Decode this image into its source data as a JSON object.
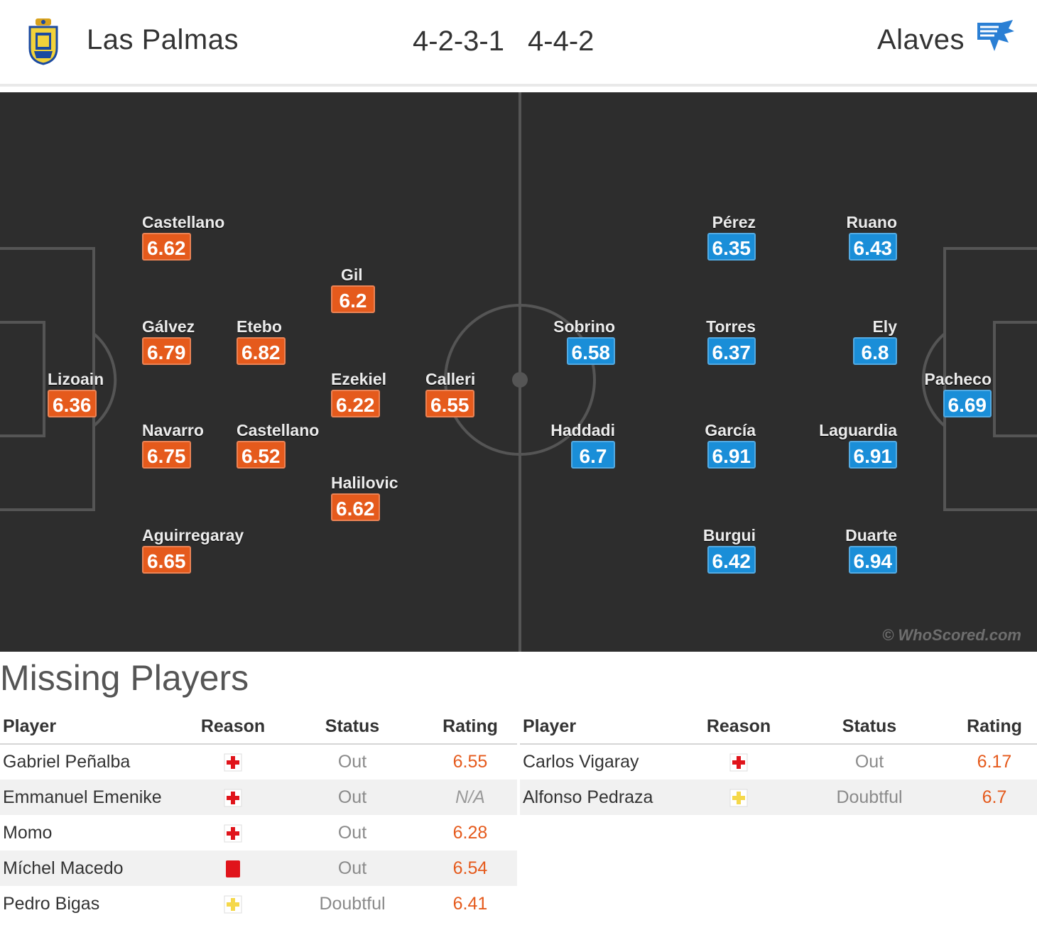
{
  "header": {
    "home_team": "Las Palmas",
    "away_team": "Alaves",
    "home_formation": "4-2-3-1",
    "away_formation": "4-4-2"
  },
  "colors": {
    "home_rating": "#e55a1c",
    "away_rating": "#1a8ed8",
    "pitch": "#2d2d2d",
    "pitch_lines": "#555555"
  },
  "pitch": {
    "watermark": "© WhoScored.com",
    "home_players": [
      {
        "name": "Castellano",
        "rating": "6.62"
      },
      {
        "name": "Gil",
        "rating": "6.2"
      },
      {
        "name": "Gálvez",
        "rating": "6.79"
      },
      {
        "name": "Etebo",
        "rating": "6.82"
      },
      {
        "name": "Lizoain",
        "rating": "6.36"
      },
      {
        "name": "Ezekiel",
        "rating": "6.22"
      },
      {
        "name": "Calleri",
        "rating": "6.55"
      },
      {
        "name": "Navarro",
        "rating": "6.75"
      },
      {
        "name": "Castellano",
        "rating": "6.52"
      },
      {
        "name": "Halilovic",
        "rating": "6.62"
      },
      {
        "name": "Aguirregaray",
        "rating": "6.65"
      }
    ],
    "away_players": [
      {
        "name": "Pérez",
        "rating": "6.35"
      },
      {
        "name": "Ruano",
        "rating": "6.43"
      },
      {
        "name": "Sobrino",
        "rating": "6.58"
      },
      {
        "name": "Torres",
        "rating": "6.37"
      },
      {
        "name": "Ely",
        "rating": "6.8"
      },
      {
        "name": "Pacheco",
        "rating": "6.69"
      },
      {
        "name": "Haddadi",
        "rating": "6.7"
      },
      {
        "name": "García",
        "rating": "6.91"
      },
      {
        "name": "Laguardia",
        "rating": "6.91"
      },
      {
        "name": "Burgui",
        "rating": "6.42"
      },
      {
        "name": "Duarte",
        "rating": "6.94"
      }
    ]
  },
  "missing": {
    "title": "Missing Players",
    "columns": {
      "player": "Player",
      "reason": "Reason",
      "status": "Status",
      "rating": "Rating"
    },
    "home": [
      {
        "player": "Gabriel Peñalba",
        "reason_icon": "injury-icon",
        "status": "Out",
        "rating": "6.55"
      },
      {
        "player": "Emmanuel Emenike",
        "reason_icon": "injury-icon",
        "status": "Out",
        "rating": "N/A"
      },
      {
        "player": "Momo",
        "reason_icon": "injury-icon",
        "status": "Out",
        "rating": "6.28"
      },
      {
        "player": "Míchel Macedo",
        "reason_icon": "red-card-icon",
        "status": "Out",
        "rating": "6.54"
      },
      {
        "player": "Pedro Bigas",
        "reason_icon": "doubtful-injury-icon",
        "status": "Doubtful",
        "rating": "6.41"
      }
    ],
    "away": [
      {
        "player": "Carlos Vigaray",
        "reason_icon": "injury-icon",
        "status": "Out",
        "rating": "6.17"
      },
      {
        "player": "Alfonso Pedraza",
        "reason_icon": "doubtful-injury-icon",
        "status": "Doubtful",
        "rating": "6.7"
      }
    ]
  }
}
